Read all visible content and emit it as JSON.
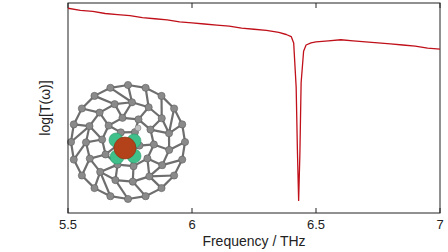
{
  "chart_data": {
    "type": "line",
    "x_label": "Frequency / THz",
    "y_label": "log[T(ω)]",
    "x": [
      5.5,
      5.55,
      5.6,
      5.65,
      5.7,
      5.75,
      5.8,
      5.85,
      5.9,
      5.95,
      6.0,
      6.05,
      6.1,
      6.15,
      6.2,
      6.25,
      6.3,
      6.35,
      6.38,
      6.4,
      6.41,
      6.42,
      6.425,
      6.43,
      6.435,
      6.44,
      6.45,
      6.46,
      6.48,
      6.5,
      6.55,
      6.6,
      6.65,
      6.7,
      6.75,
      6.8,
      6.85,
      6.9,
      6.95,
      7.0
    ],
    "values": [
      97.5,
      96.5,
      96,
      95,
      94.5,
      94,
      93,
      92.5,
      92,
      91,
      90.5,
      90,
      89.5,
      89,
      88,
      87.5,
      87,
      86,
      85,
      84,
      81,
      60,
      30,
      6,
      28,
      62,
      77,
      80,
      81,
      81.5,
      82,
      82.5,
      82,
      81.5,
      81,
      80.5,
      80,
      79.5,
      78.5,
      78
    ],
    "color": "#c0101a",
    "xlim": [
      5.5,
      7.0
    ],
    "xticks": [
      5.5,
      6.0,
      6.5,
      7.0
    ],
    "ylim": [
      0,
      100
    ],
    "yticks": [],
    "tick_labels": "x",
    "grid": false
  }
}
